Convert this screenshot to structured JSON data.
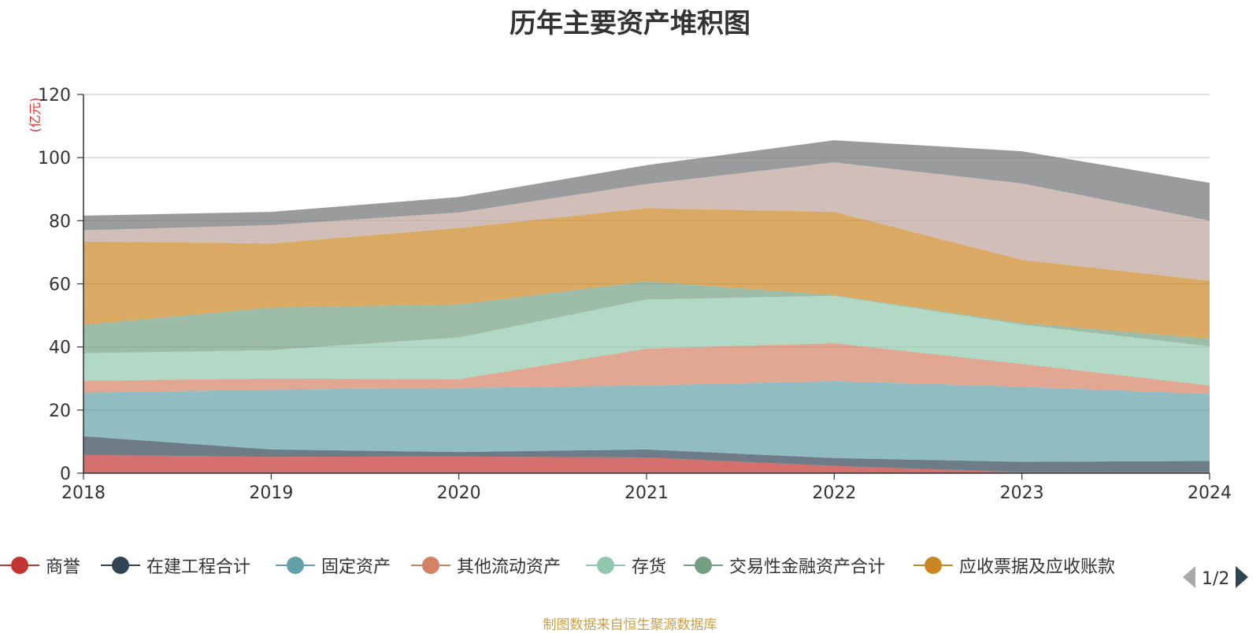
{
  "colors": {
    "商誉": "#c23531",
    "在建工程合计": "#2f4554",
    "固定资产": "#61a0a8",
    "其他流动资产": "#d48265",
    "存货": "#91c7ae",
    "交易性金融资产合计": "#749f83",
    "应收票据及应收账款": "#ca8622",
    "series8": "#bda29a",
    "series9": "#6e7074"
  },
  "legend": {
    "items": [
      "商誉",
      "在建工程合计",
      "固定资产",
      "其他流动资产",
      "存货",
      "交易性金融资产合计",
      "应收票据及应收账款"
    ],
    "page_text": "1/2"
  },
  "source_note": "制图数据来自恒生聚源数据库",
  "chart_data": {
    "type": "area",
    "title": "历年主要资产堆积图",
    "ylabel": "(亿元)",
    "xlabel": "",
    "x": [
      "2018",
      "2019",
      "2020",
      "2021",
      "2022",
      "2023",
      "2024"
    ],
    "ylim": [
      0,
      120
    ],
    "yticks": [
      0,
      20,
      40,
      60,
      80,
      100,
      120
    ],
    "stacked": true,
    "grid": true,
    "legend_position": "bottom",
    "series": [
      {
        "name": "商誉",
        "values": [
          5.8,
          5.2,
          5.3,
          5.0,
          2.3,
          0.3,
          0.3
        ]
      },
      {
        "name": "在建工程合计",
        "values": [
          5.9,
          2.3,
          1.4,
          2.5,
          2.5,
          3.3,
          3.6
        ]
      },
      {
        "name": "固定资产",
        "values": [
          13.8,
          19.0,
          20.3,
          20.3,
          24.4,
          23.8,
          21.2
        ]
      },
      {
        "name": "其他流动资产",
        "values": [
          3.8,
          3.5,
          2.8,
          11.7,
          12.0,
          7.2,
          2.7
        ]
      },
      {
        "name": "存货",
        "values": [
          8.7,
          9.0,
          13.2,
          15.5,
          15.0,
          12.5,
          12.4
        ]
      },
      {
        "name": "交易性金融资产合计",
        "values": [
          9.0,
          13.5,
          10.5,
          5.8,
          0.2,
          0.5,
          2.4
        ]
      },
      {
        "name": "应收票据及应收账款",
        "values": [
          26.4,
          20.3,
          24.2,
          23.2,
          26.4,
          20.0,
          18.4
        ]
      },
      {
        "name": "",
        "values": [
          3.6,
          5.8,
          4.9,
          7.6,
          15.7,
          24.2,
          19.0
        ]
      },
      {
        "name": "",
        "values": [
          4.6,
          4.2,
          4.9,
          6.0,
          7.0,
          10.2,
          12.0
        ]
      }
    ]
  }
}
